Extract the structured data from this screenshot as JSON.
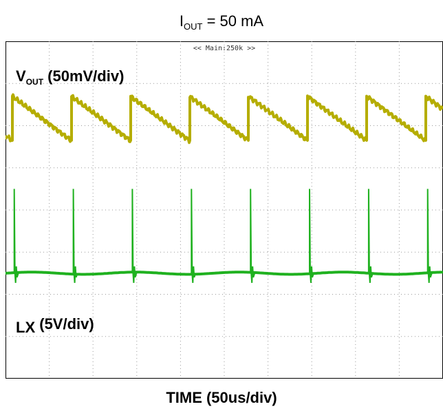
{
  "chart_data": {
    "type": "line",
    "title": {
      "main": "I",
      "sub": "OUT",
      "rest": " = 50 mA"
    },
    "xlabel": "TIME (50us/div)",
    "scope_menu": "<< Main:250k >>",
    "divisions": {
      "x": 10,
      "y": 8
    },
    "series": [
      {
        "name": {
          "main": "V",
          "sub": "OUT",
          "rest": " (50mV/div)"
        },
        "color": "#b5ad00",
        "waveform": "sawtooth",
        "period_div": 1.35,
        "first_reset_div": 0.15,
        "peak_div_from_top": 1.3,
        "trough_div_from_top": 2.35
      },
      {
        "name": {
          "main": "LX",
          "sub": "",
          "rest": " (5V/div)"
        },
        "color": "#1fb11f",
        "waveform": "switching spikes",
        "period_div": 1.35,
        "first_spike_div": 0.2,
        "baseline_div_from_top": 5.5,
        "spike_top_div_from_top": 3.5
      }
    ]
  }
}
